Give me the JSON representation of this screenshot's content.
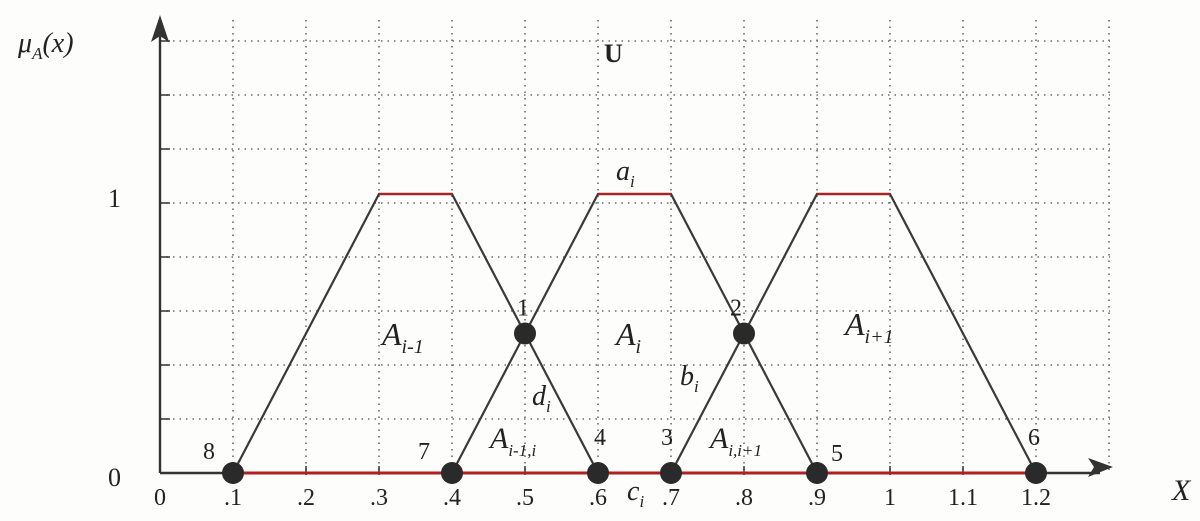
{
  "diagram": {
    "y_axis_label": "μ_A(x)",
    "x_axis_label": "X",
    "universe_label": "U",
    "y_ticks": [
      "0",
      "1"
    ],
    "x_ticks": [
      "0",
      ".1",
      ".2",
      ".3",
      ".4",
      ".5",
      ".6",
      ".7",
      ".8",
      ".9",
      "1",
      "1.1",
      "1.2"
    ],
    "sets": [
      {
        "name": "A_{i-1}",
        "points": [
          0.1,
          0.3,
          0.4,
          0.6
        ]
      },
      {
        "name": "A_i",
        "points": [
          0.4,
          0.6,
          0.7,
          0.9
        ]
      },
      {
        "name": "A_{i+1}",
        "points": [
          0.7,
          0.9,
          1.0,
          1.2
        ]
      }
    ],
    "region_labels": [
      {
        "id": "a",
        "text": "a",
        "sub": "i"
      },
      {
        "id": "b",
        "text": "b",
        "sub": "i"
      },
      {
        "id": "c",
        "text": "c",
        "sub": "i"
      },
      {
        "id": "d",
        "text": "d",
        "sub": "i"
      },
      {
        "id": "A_i-1_i",
        "text": "A",
        "sub": "i-1,i"
      },
      {
        "id": "A_i_i+1",
        "text": "A",
        "sub": "i,i+1"
      }
    ],
    "marked_points": [
      {
        "label": "1",
        "x": 0.5,
        "mu": 0.5
      },
      {
        "label": "2",
        "x": 0.8,
        "mu": 0.5
      },
      {
        "label": "3",
        "x": 0.7,
        "mu": 0
      },
      {
        "label": "4",
        "x": 0.6,
        "mu": 0
      },
      {
        "label": "5",
        "x": 0.9,
        "mu": 0
      },
      {
        "label": "6",
        "x": 1.2,
        "mu": 0
      },
      {
        "label": "7",
        "x": 0.4,
        "mu": 0
      },
      {
        "label": "8",
        "x": 0.1,
        "mu": 0
      }
    ],
    "colors": {
      "lines": "#3a3a3a",
      "accent": "#b02020",
      "points": "#2a2a2a",
      "grid": "#6b6b6b"
    }
  }
}
